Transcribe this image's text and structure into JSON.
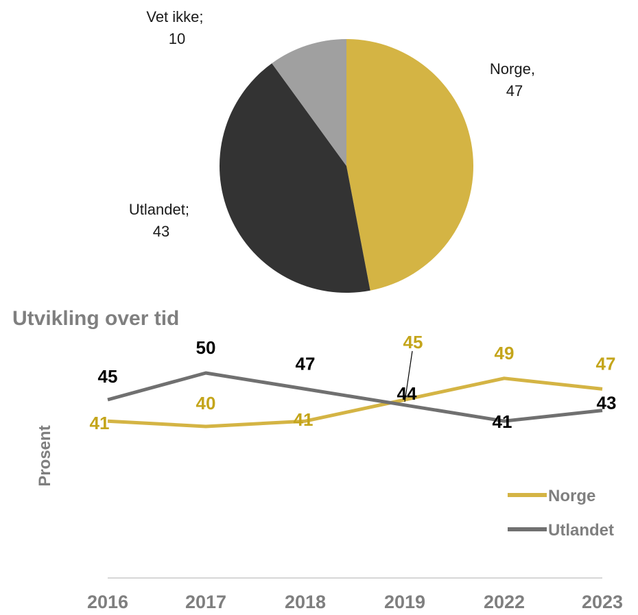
{
  "chart_data": [
    {
      "type": "pie",
      "slices": [
        {
          "label": "Norge",
          "sep": ",",
          "value": 47,
          "color": "#d4b444"
        },
        {
          "label": "Utlandet",
          "sep": ";",
          "value": 43,
          "color": "#333333"
        },
        {
          "label": "Vet ikke",
          "sep": ";",
          "value": 10,
          "color": "#a0a0a0"
        }
      ]
    },
    {
      "type": "line",
      "title": "Utvikling over tid",
      "ylabel": "Prosent",
      "categories": [
        "2016",
        "2017",
        "2018",
        "2019",
        "2022",
        "2023"
      ],
      "grid": false,
      "legend_position": "right",
      "series": [
        {
          "name": "Norge",
          "values": [
            41,
            40,
            41,
            45,
            49,
            47
          ],
          "color": "#d4b444",
          "label_color": "#c4a51b"
        },
        {
          "name": "Utlandet",
          "values": [
            45,
            50,
            47,
            44,
            41,
            43
          ],
          "color": "#707070",
          "label_color": "#000000"
        }
      ]
    }
  ]
}
